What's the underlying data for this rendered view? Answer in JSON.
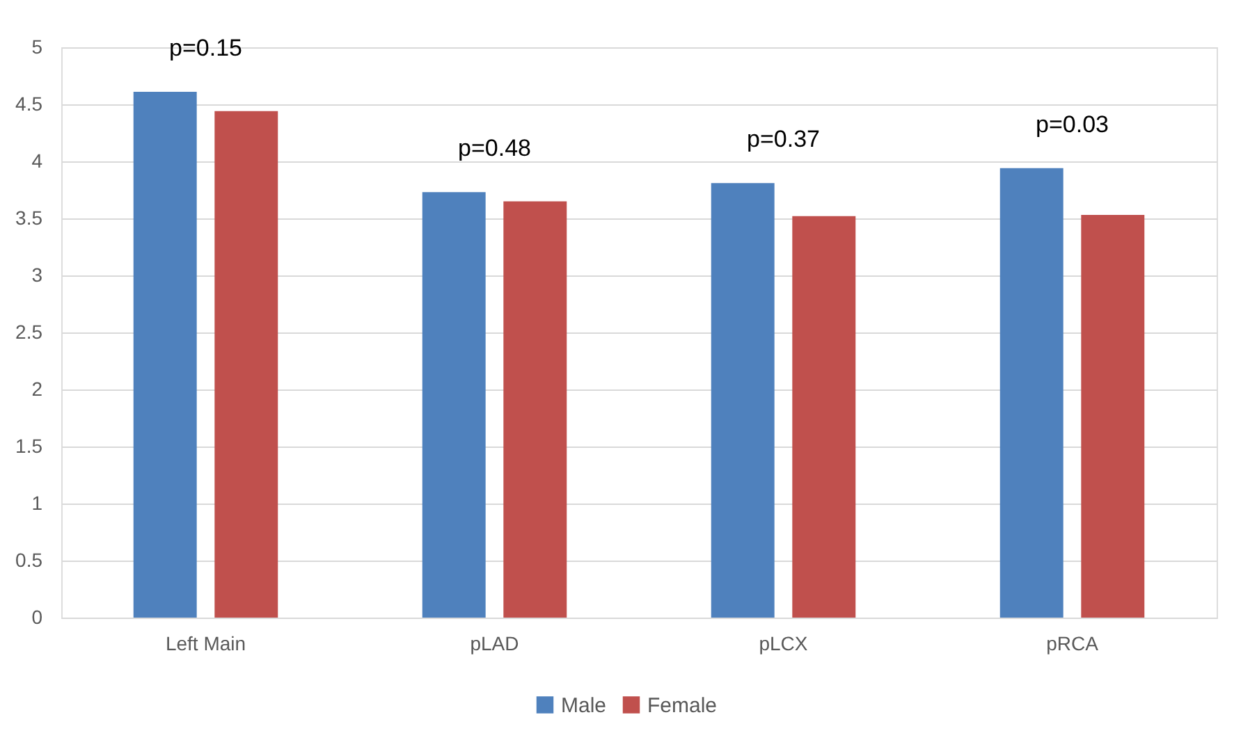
{
  "chart_data": {
    "type": "bar",
    "categories": [
      "Left Main",
      "pLAD",
      "pLCX",
      "pRCA"
    ],
    "series": [
      {
        "name": "Male",
        "color": "#4f81bd",
        "values": [
          4.61,
          3.73,
          3.81,
          3.94
        ]
      },
      {
        "name": "Female",
        "color": "#c0504d",
        "values": [
          4.44,
          3.65,
          3.52,
          3.53
        ]
      }
    ],
    "ylim": [
      0,
      5
    ],
    "yticks": [
      0,
      0.5,
      1,
      1.5,
      2,
      2.5,
      3,
      3.5,
      4,
      4.5,
      5
    ],
    "grid": "y",
    "legend": "bottom",
    "annotations": [
      "p=0.15",
      "p=0.48",
      "p=0.37",
      "p=0.03"
    ]
  }
}
